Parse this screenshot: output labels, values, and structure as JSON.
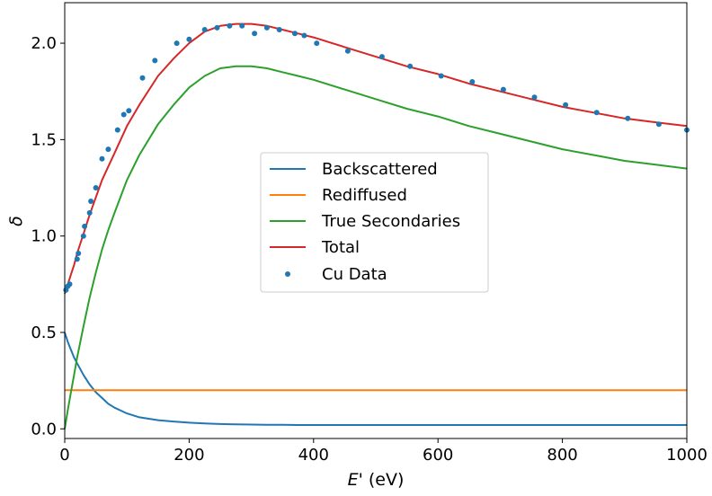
{
  "chart_data": {
    "type": "line",
    "xlabel_italic": "E",
    "xlabel_rest": "' (eV)",
    "ylabel": "δ",
    "xlim": [
      0,
      1000
    ],
    "ylim": [
      -0.05,
      2.21
    ],
    "x_ticks": [
      0,
      200,
      400,
      600,
      800,
      1000
    ],
    "x_tick_labels": [
      "0",
      "200",
      "400",
      "600",
      "800",
      "1000"
    ],
    "y_ticks": [
      0.0,
      0.5,
      1.0,
      1.5,
      2.0
    ],
    "y_tick_labels": [
      "0.0",
      "0.5",
      "1.0",
      "1.5",
      "2.0"
    ],
    "grid": false,
    "legend_position": "center",
    "x": [
      0,
      5,
      10,
      15,
      20,
      30,
      40,
      50,
      60,
      70,
      80,
      100,
      120,
      150,
      175,
      200,
      225,
      250,
      275,
      300,
      325,
      350,
      375,
      400,
      450,
      500,
      550,
      600,
      650,
      700,
      750,
      800,
      850,
      900,
      950,
      1000
    ],
    "series": [
      {
        "name": "Backscattered",
        "color": "#1f77b4",
        "values": [
          0.5,
          0.45,
          0.41,
          0.37,
          0.34,
          0.28,
          0.23,
          0.19,
          0.16,
          0.13,
          0.11,
          0.08,
          0.06,
          0.045,
          0.038,
          0.032,
          0.028,
          0.025,
          0.023,
          0.022,
          0.021,
          0.021,
          0.02,
          0.02,
          0.02,
          0.02,
          0.02,
          0.02,
          0.02,
          0.02,
          0.02,
          0.02,
          0.02,
          0.02,
          0.02,
          0.02
        ]
      },
      {
        "name": "Rediffused",
        "color": "#ff7f0e",
        "values": [
          0.2,
          0.2,
          0.2,
          0.2,
          0.2,
          0.2,
          0.2,
          0.2,
          0.2,
          0.2,
          0.2,
          0.2,
          0.2,
          0.2,
          0.2,
          0.2,
          0.2,
          0.2,
          0.2,
          0.2,
          0.2,
          0.2,
          0.2,
          0.2,
          0.2,
          0.2,
          0.2,
          0.2,
          0.2,
          0.2,
          0.2,
          0.2,
          0.2,
          0.2,
          0.2,
          0.2
        ]
      },
      {
        "name": "True Secondaries",
        "color": "#2ca02c",
        "values": [
          0.0,
          0.1,
          0.19,
          0.28,
          0.37,
          0.53,
          0.68,
          0.81,
          0.93,
          1.03,
          1.12,
          1.29,
          1.42,
          1.58,
          1.68,
          1.77,
          1.83,
          1.87,
          1.88,
          1.88,
          1.87,
          1.85,
          1.83,
          1.81,
          1.76,
          1.71,
          1.66,
          1.62,
          1.57,
          1.53,
          1.49,
          1.45,
          1.42,
          1.39,
          1.37,
          1.35
        ]
      },
      {
        "name": "Total",
        "color": "#d62728",
        "values": [
          0.7,
          0.75,
          0.8,
          0.85,
          0.91,
          1.01,
          1.11,
          1.2,
          1.29,
          1.36,
          1.43,
          1.57,
          1.68,
          1.83,
          1.92,
          2.0,
          2.06,
          2.09,
          2.1,
          2.1,
          2.09,
          2.07,
          2.05,
          2.03,
          1.98,
          1.93,
          1.88,
          1.84,
          1.79,
          1.75,
          1.71,
          1.67,
          1.64,
          1.61,
          1.59,
          1.57
        ]
      }
    ],
    "scatter": {
      "name": "Cu Data",
      "color": "#1f77b4",
      "points": [
        [
          2,
          0.72
        ],
        [
          5,
          0.74
        ],
        [
          8,
          0.75
        ],
        [
          20,
          0.88
        ],
        [
          22,
          0.91
        ],
        [
          30,
          1.0
        ],
        [
          32,
          1.05
        ],
        [
          40,
          1.12
        ],
        [
          42,
          1.18
        ],
        [
          50,
          1.25
        ],
        [
          60,
          1.4
        ],
        [
          70,
          1.45
        ],
        [
          85,
          1.55
        ],
        [
          95,
          1.63
        ],
        [
          103,
          1.65
        ],
        [
          125,
          1.82
        ],
        [
          145,
          1.91
        ],
        [
          180,
          2.0
        ],
        [
          200,
          2.02
        ],
        [
          225,
          2.07
        ],
        [
          245,
          2.08
        ],
        [
          265,
          2.09
        ],
        [
          285,
          2.09
        ],
        [
          305,
          2.05
        ],
        [
          325,
          2.08
        ],
        [
          345,
          2.07
        ],
        [
          370,
          2.05
        ],
        [
          385,
          2.04
        ],
        [
          405,
          2.0
        ],
        [
          455,
          1.96
        ],
        [
          510,
          1.93
        ],
        [
          555,
          1.88
        ],
        [
          605,
          1.83
        ],
        [
          655,
          1.8
        ],
        [
          705,
          1.76
        ],
        [
          755,
          1.72
        ],
        [
          805,
          1.68
        ],
        [
          855,
          1.64
        ],
        [
          905,
          1.61
        ],
        [
          955,
          1.58
        ],
        [
          1000,
          1.55
        ]
      ]
    }
  }
}
